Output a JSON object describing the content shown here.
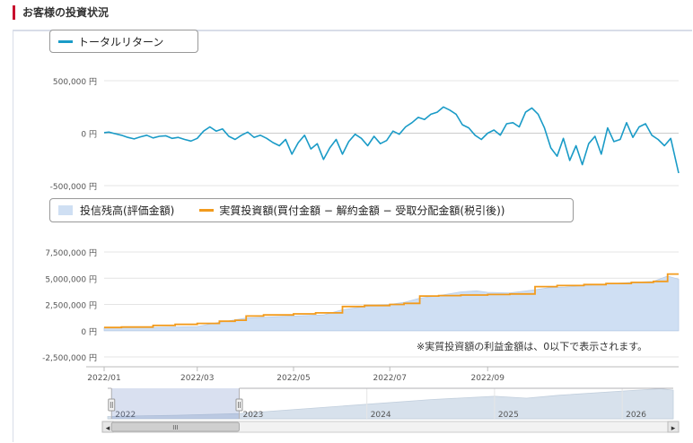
{
  "page": {
    "section_title": "お客様の投資状況"
  },
  "colors": {
    "return_line": "#1a9bc7",
    "balance_fill": "#cfdff3",
    "invested_line": "#f29b1d",
    "navigator_fill": "#d7e1ec",
    "accent_bar": "#c8102e"
  },
  "chart_data": [
    {
      "type": "line",
      "legend": [
        "トータルリターン"
      ],
      "ylabel": "",
      "xlabel": "",
      "ylim": [
        -500000,
        500000
      ],
      "y_ticks": [
        "500,000 円",
        "0 円",
        "-500,000 円"
      ],
      "y_tick_values": [
        500000,
        0,
        -500000
      ],
      "x_range": [
        "2022/01/01",
        "2022/12/31"
      ],
      "series": [
        {
          "name": "トータルリターン",
          "x": [
            "2022/01/01",
            "2022/01/04",
            "2022/01/08",
            "2022/01/12",
            "2022/01/16",
            "2022/01/20",
            "2022/01/24",
            "2022/01/28",
            "2022/02/01",
            "2022/02/05",
            "2022/02/09",
            "2022/02/13",
            "2022/02/17",
            "2022/02/21",
            "2022/02/25",
            "2022/03/01",
            "2022/03/05",
            "2022/03/09",
            "2022/03/13",
            "2022/03/17",
            "2022/03/21",
            "2022/03/25",
            "2022/03/29",
            "2022/04/02",
            "2022/04/06",
            "2022/04/10",
            "2022/04/14",
            "2022/04/18",
            "2022/04/22",
            "2022/04/26",
            "2022/04/30",
            "2022/05/04",
            "2022/05/08",
            "2022/05/12",
            "2022/05/16",
            "2022/05/20",
            "2022/05/24",
            "2022/05/28",
            "2022/06/01",
            "2022/06/05",
            "2022/06/09",
            "2022/06/13",
            "2022/06/17",
            "2022/06/21",
            "2022/06/25",
            "2022/06/29",
            "2022/07/03",
            "2022/07/07",
            "2022/07/11",
            "2022/07/15",
            "2022/07/19",
            "2022/07/23",
            "2022/07/27",
            "2022/07/31",
            "2022/08/04",
            "2022/08/08",
            "2022/08/12",
            "2022/08/16",
            "2022/08/20",
            "2022/08/24",
            "2022/08/28",
            "2022/09/01",
            "2022/09/05",
            "2022/09/09",
            "2022/09/13",
            "2022/09/17",
            "2022/09/21",
            "2022/09/25",
            "2022/09/29",
            "2022/10/03",
            "2022/10/07",
            "2022/10/11",
            "2022/10/15",
            "2022/10/19",
            "2022/10/23",
            "2022/10/27",
            "2022/10/31",
            "2022/11/04",
            "2022/11/08",
            "2022/11/12",
            "2022/11/16",
            "2022/11/20",
            "2022/11/24",
            "2022/11/28",
            "2022/12/02",
            "2022/12/06",
            "2022/12/10",
            "2022/12/14",
            "2022/12/18",
            "2022/12/22",
            "2022/12/26",
            "2022/12/31"
          ],
          "values": [
            5000,
            10000,
            -5000,
            -20000,
            -40000,
            -55000,
            -35000,
            -20000,
            -45000,
            -30000,
            -25000,
            -50000,
            -40000,
            -60000,
            -75000,
            -50000,
            20000,
            60000,
            20000,
            40000,
            -30000,
            -60000,
            -20000,
            10000,
            -40000,
            -20000,
            -50000,
            -90000,
            -120000,
            -60000,
            -200000,
            -90000,
            -20000,
            -150000,
            -100000,
            -250000,
            -140000,
            -60000,
            -200000,
            -80000,
            -10000,
            -50000,
            -120000,
            -30000,
            -100000,
            -70000,
            20000,
            -10000,
            60000,
            100000,
            150000,
            130000,
            180000,
            200000,
            250000,
            220000,
            180000,
            80000,
            50000,
            -20000,
            -60000,
            0,
            30000,
            -20000,
            90000,
            100000,
            60000,
            200000,
            240000,
            180000,
            50000,
            -140000,
            -220000,
            -50000,
            -260000,
            -120000,
            -300000,
            -100000,
            -30000,
            -200000,
            50000,
            -80000,
            -60000,
            100000,
            -40000,
            60000,
            90000,
            -20000,
            -60000,
            -120000,
            -50000,
            -380000
          ]
        }
      ]
    },
    {
      "type": "area",
      "legend": [
        "投信残高(評価金額)",
        "実質投資額(買付金額 − 解約金額 − 受取分配金額(税引後))"
      ],
      "ylabel": "",
      "xlabel": "",
      "ylim": [
        -2500000,
        7500000
      ],
      "y_ticks": [
        "7,500,000 円",
        "5,000,000 円",
        "2,500,000 円",
        "0 円",
        "-2,500,000 円"
      ],
      "y_tick_values": [
        7500000,
        5000000,
        2500000,
        0,
        -2500000
      ],
      "x_range": [
        "2022/01/01",
        "2022/12/31"
      ],
      "x_ticks": [
        "2022/01",
        "2022/03",
        "2022/05",
        "2022/07",
        "2022/09"
      ],
      "x_tick_dates": [
        "2022/01/01",
        "2022/03/01",
        "2022/05/01",
        "2022/07/01",
        "2022/09/01"
      ],
      "note": "※実質投資額の利益金額は、0以下で表示されます。",
      "series": [
        {
          "name": "投信残高(評価金額)",
          "kind": "area",
          "x": [
            "2022/01/01",
            "2022/02/01",
            "2022/03/01",
            "2022/03/15",
            "2022/04/01",
            "2022/05/01",
            "2022/05/20",
            "2022/06/01",
            "2022/06/20",
            "2022/07/01",
            "2022/07/10",
            "2022/07/20",
            "2022/08/01",
            "2022/08/15",
            "2022/08/25",
            "2022/09/01",
            "2022/09/15",
            "2022/10/01",
            "2022/10/10",
            "2022/10/20",
            "2022/11/01",
            "2022/11/20",
            "2022/12/01",
            "2022/12/15",
            "2022/12/24",
            "2022/12/31"
          ],
          "values": [
            300000,
            300000,
            400000,
            800000,
            1200000,
            1400000,
            1500000,
            2000000,
            2400000,
            2500000,
            2700000,
            3100000,
            3350000,
            3700000,
            3800000,
            3650000,
            3600000,
            3900000,
            4100000,
            4150000,
            4300000,
            4500000,
            4600000,
            4700000,
            5200000,
            4900000
          ]
        },
        {
          "name": "実質投資額(買付金額 − 解約金額 − 受取分配金額(税引後))",
          "kind": "step",
          "x": [
            "2022/01/01",
            "2022/01/12",
            "2022/02/01",
            "2022/02/15",
            "2022/03/01",
            "2022/03/15",
            "2022/03/25",
            "2022/04/01",
            "2022/04/12",
            "2022/05/01",
            "2022/05/15",
            "2022/06/01",
            "2022/06/15",
            "2022/07/01",
            "2022/07/10",
            "2022/07/20",
            "2022/08/01",
            "2022/08/15",
            "2022/09/01",
            "2022/09/15",
            "2022/10/01",
            "2022/10/15",
            "2022/11/01",
            "2022/11/15",
            "2022/12/01",
            "2022/12/15",
            "2022/12/24",
            "2022/12/31"
          ],
          "values": [
            300000,
            350000,
            500000,
            600000,
            700000,
            900000,
            1000000,
            1400000,
            1500000,
            1600000,
            1700000,
            2300000,
            2400000,
            2500000,
            2600000,
            3300000,
            3350000,
            3400000,
            3450000,
            3500000,
            4200000,
            4300000,
            4400000,
            4500000,
            4600000,
            4700000,
            5400000,
            5400000
          ]
        }
      ]
    }
  ],
  "navigator": {
    "year_labels": [
      "2022",
      "2023",
      "2024",
      "2025",
      "2026"
    ],
    "year_values": [
      2022,
      2023,
      2024,
      2025,
      2026
    ],
    "x_range": [
      2021.97,
      2026.4
    ],
    "selection": [
      2022.0,
      2023.0
    ],
    "balance_x": [
      2021.97,
      2022.5,
      2023.0,
      2023.5,
      2024.0,
      2024.5,
      2025.0,
      2025.25,
      2025.5,
      2026.0,
      2026.3,
      2026.4
    ],
    "balance_values": [
      100,
      150,
      220,
      420,
      620,
      820,
      960,
      880,
      1000,
      1180,
      1280,
      1220
    ],
    "scroll_grip_label": "III",
    "scroll_left_arrow": "◂",
    "scroll_right_arrow": "▸"
  },
  "legend_return": {
    "label": "トータルリターン"
  },
  "legend_balance": {
    "balance_label": "投信残高(評価金額)",
    "invested_label": "実質投資額(買付金額 − 解約金額 − 受取分配金額(税引後))"
  }
}
